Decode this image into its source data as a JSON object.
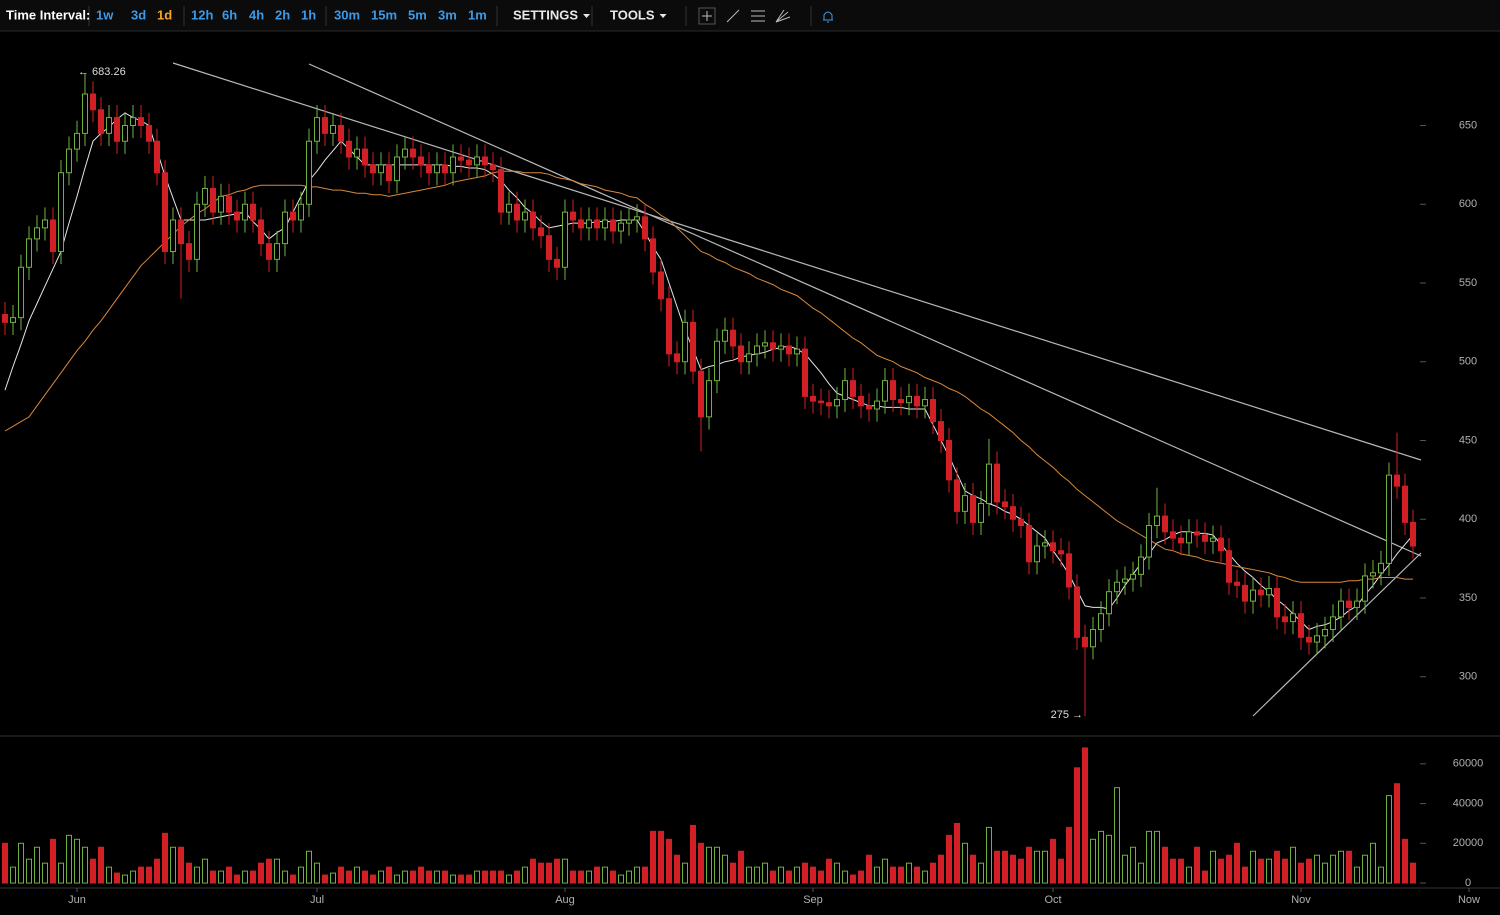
{
  "toolbar": {
    "label": "Time Interval:",
    "intervals": [
      "1w",
      "3d",
      "1d",
      "12h",
      "6h",
      "4h",
      "2h",
      "1h",
      "30m",
      "15m",
      "5m",
      "3m",
      "1m"
    ],
    "active_interval_index": 2,
    "menus": [
      "SETTINGS",
      "TOOLS"
    ]
  },
  "chart_data": [
    {
      "type": "candlestick",
      "up_color": "#6fb23e",
      "down_color": "#d21f26",
      "xlim": [
        -0.625,
        186.875
      ],
      "ylim": [
        263,
        710
      ],
      "yticks": [
        300,
        350,
        400,
        450,
        500,
        550,
        600,
        650
      ],
      "open": [
        530,
        525,
        528,
        560,
        578,
        585,
        590,
        570,
        620,
        635,
        645,
        670,
        660,
        645,
        655,
        640,
        650,
        655,
        650,
        640,
        620,
        570,
        590,
        575,
        565,
        600,
        610,
        595,
        605,
        595,
        590,
        600,
        590,
        575,
        565,
        575,
        595,
        590,
        600,
        640,
        655,
        645,
        650,
        640,
        630,
        635,
        625,
        620,
        625,
        615,
        630,
        635,
        630,
        625,
        620,
        625,
        620,
        630,
        628,
        625,
        630,
        625,
        622,
        595,
        600,
        590,
        595,
        585,
        580,
        565,
        560,
        595,
        590,
        585,
        590,
        585,
        590,
        583,
        588,
        590,
        592,
        578,
        557,
        540,
        505,
        500,
        525,
        494,
        465,
        488,
        513,
        520,
        510,
        500,
        505,
        510,
        512,
        508,
        510,
        505,
        508,
        478,
        475,
        474,
        472,
        476,
        488,
        478,
        472,
        470,
        475,
        488,
        476,
        474,
        478,
        472,
        476,
        462,
        450,
        425,
        405,
        415,
        398,
        410,
        435,
        411,
        408,
        400,
        396,
        373,
        383,
        385,
        380,
        378,
        357,
        325,
        319,
        330,
        340,
        354,
        360,
        362,
        365,
        376,
        396,
        402,
        392,
        388,
        385,
        392,
        390,
        386,
        388,
        380,
        360,
        358,
        348,
        355,
        352,
        356,
        338,
        335,
        340,
        325,
        322,
        326,
        330,
        338,
        348,
        344,
        348,
        364,
        366,
        372,
        428,
        421,
        398
      ],
      "high": [
        538,
        536,
        568,
        586,
        593,
        598,
        598,
        628,
        643,
        653,
        683.26,
        678,
        668,
        663,
        663,
        658,
        663,
        663,
        658,
        648,
        628,
        598,
        598,
        583,
        608,
        618,
        618,
        613,
        613,
        603,
        608,
        608,
        598,
        583,
        583,
        603,
        603,
        608,
        648,
        663,
        663,
        658,
        658,
        648,
        643,
        643,
        633,
        633,
        633,
        638,
        643,
        643,
        638,
        633,
        633,
        633,
        638,
        638,
        636,
        638,
        638,
        633,
        630,
        608,
        608,
        603,
        603,
        593,
        588,
        573,
        603,
        603,
        598,
        598,
        598,
        598,
        598,
        596,
        598,
        600,
        600,
        586,
        565,
        548,
        513,
        533,
        533,
        502,
        496,
        521,
        528,
        528,
        518,
        513,
        518,
        520,
        520,
        518,
        518,
        516,
        516,
        486,
        483,
        482,
        484,
        496,
        496,
        486,
        480,
        483,
        496,
        496,
        484,
        486,
        486,
        484,
        484,
        470,
        458,
        433,
        423,
        423,
        418,
        451,
        443,
        419,
        416,
        408,
        404,
        391,
        393,
        393,
        388,
        386,
        365,
        333,
        338,
        348,
        362,
        368,
        370,
        373,
        384,
        404,
        420,
        410,
        400,
        396,
        400,
        400,
        398,
        396,
        396,
        388,
        368,
        366,
        363,
        363,
        364,
        364,
        346,
        348,
        348,
        333,
        334,
        338,
        346,
        356,
        356,
        356,
        372,
        374,
        380,
        436,
        455,
        429,
        406
      ],
      "low": [
        517,
        517,
        520,
        552,
        570,
        577,
        562,
        562,
        612,
        627,
        637,
        652,
        637,
        637,
        632,
        632,
        642,
        642,
        632,
        612,
        562,
        562,
        540,
        557,
        557,
        592,
        587,
        587,
        587,
        582,
        582,
        582,
        567,
        557,
        557,
        567,
        582,
        582,
        592,
        632,
        637,
        637,
        632,
        622,
        622,
        617,
        612,
        612,
        607,
        607,
        622,
        622,
        617,
        612,
        612,
        612,
        612,
        620,
        617,
        617,
        617,
        614,
        587,
        587,
        582,
        582,
        577,
        572,
        557,
        552,
        552,
        582,
        577,
        577,
        577,
        577,
        575,
        575,
        580,
        582,
        570,
        549,
        532,
        497,
        492,
        492,
        486,
        443,
        457,
        480,
        505,
        502,
        492,
        492,
        497,
        502,
        500,
        500,
        497,
        497,
        470,
        467,
        466,
        464,
        464,
        468,
        470,
        464,
        462,
        462,
        467,
        468,
        466,
        466,
        464,
        464,
        454,
        442,
        417,
        397,
        397,
        390,
        390,
        402,
        403,
        400,
        392,
        388,
        365,
        365,
        375,
        372,
        370,
        349,
        317,
        275,
        311,
        322,
        332,
        346,
        352,
        354,
        357,
        368,
        388,
        384,
        380,
        377,
        377,
        382,
        378,
        378,
        372,
        352,
        350,
        340,
        340,
        344,
        344,
        330,
        327,
        327,
        317,
        314,
        314,
        318,
        322,
        330,
        336,
        336,
        340,
        356,
        358,
        364,
        413,
        390,
        375
      ],
      "close": [
        525,
        528,
        560,
        578,
        585,
        590,
        570,
        620,
        635,
        645,
        670,
        660,
        645,
        655,
        640,
        650,
        655,
        650,
        640,
        620,
        570,
        590,
        575,
        565,
        600,
        610,
        595,
        605,
        595,
        590,
        600,
        590,
        575,
        565,
        575,
        595,
        590,
        600,
        640,
        655,
        645,
        650,
        640,
        630,
        635,
        625,
        620,
        625,
        615,
        630,
        635,
        630,
        625,
        620,
        625,
        620,
        630,
        628,
        625,
        630,
        625,
        622,
        595,
        600,
        590,
        595,
        585,
        580,
        565,
        560,
        595,
        590,
        585,
        590,
        585,
        590,
        583,
        588,
        590,
        592,
        578,
        557,
        540,
        505,
        500,
        525,
        494,
        465,
        488,
        513,
        520,
        510,
        500,
        505,
        510,
        512,
        508,
        510,
        505,
        508,
        478,
        475,
        474,
        472,
        476,
        488,
        478,
        472,
        470,
        475,
        488,
        476,
        474,
        478,
        472,
        476,
        462,
        450,
        425,
        405,
        415,
        398,
        410,
        435,
        411,
        408,
        400,
        396,
        373,
        383,
        385,
        380,
        378,
        357,
        325,
        319,
        330,
        340,
        354,
        360,
        362,
        365,
        376,
        396,
        402,
        392,
        388,
        385,
        392,
        390,
        386,
        388,
        380,
        360,
        358,
        348,
        355,
        352,
        356,
        338,
        335,
        340,
        325,
        322,
        326,
        330,
        338,
        348,
        344,
        348,
        364,
        366,
        372,
        428,
        421,
        398,
        383
      ],
      "lines": [
        {
          "color": "#e6e6e6",
          "values": [
            482,
            497,
            511,
            526,
            537,
            548,
            559,
            570,
            588,
            605,
            623,
            640,
            645,
            649,
            654,
            658,
            655,
            653,
            650,
            634,
            618,
            604,
            590,
            590,
            590,
            590,
            591,
            592,
            593,
            594,
            595,
            589,
            584,
            578,
            582,
            585,
            595,
            605,
            615,
            621,
            628,
            634,
            640,
            635,
            630,
            625,
            625,
            625,
            625,
            625,
            625,
            625,
            625,
            625,
            625,
            625,
            624,
            624,
            623,
            623,
            622,
            619,
            615,
            609,
            604,
            598,
            594,
            589,
            585,
            586,
            587,
            588,
            588,
            588,
            589,
            589,
            589,
            590,
            590,
            590,
            582,
            573,
            565,
            550,
            535,
            520,
            508,
            495,
            497,
            498,
            500,
            501,
            503,
            504,
            505,
            506,
            508,
            509,
            510,
            508,
            505,
            499,
            493,
            486,
            480,
            478,
            476,
            474,
            472,
            472,
            471,
            471,
            471,
            470,
            470,
            470,
            460,
            450,
            440,
            429,
            418,
            415,
            413,
            410,
            408,
            405,
            403,
            400,
            396,
            392,
            388,
            380,
            373,
            365,
            355,
            345,
            344,
            344,
            343,
            350,
            358,
            365,
            372,
            378,
            385,
            387,
            390,
            392,
            392,
            391,
            391,
            390,
            384,
            378,
            372,
            367,
            363,
            358,
            354,
            349,
            345,
            340,
            335,
            330,
            332,
            333,
            335,
            338,
            342,
            345,
            352,
            358,
            365,
            371,
            378,
            384,
            390
          ]
        },
        {
          "color": "#d9883a",
          "values": [
            456,
            459,
            462,
            465,
            472,
            479,
            486,
            493,
            500,
            507,
            513,
            520,
            526,
            533,
            540,
            547,
            554,
            561,
            566,
            571,
            576,
            581,
            586,
            590,
            594,
            597,
            601,
            605,
            606,
            608,
            609,
            611,
            612,
            612,
            612,
            612,
            612,
            612,
            611,
            611,
            610,
            609,
            609,
            608,
            607,
            607,
            606,
            606,
            605,
            606,
            607,
            608,
            609,
            610,
            611,
            612,
            614,
            615,
            616,
            617,
            618,
            620,
            621,
            621,
            621,
            620,
            620,
            620,
            619,
            617,
            616,
            615,
            613,
            612,
            611,
            609,
            608,
            607,
            605,
            604,
            600,
            597,
            593,
            590,
            585,
            580,
            575,
            570,
            568,
            565,
            563,
            560,
            558,
            556,
            553,
            551,
            549,
            546,
            544,
            542,
            538,
            534,
            531,
            527,
            523,
            519,
            515,
            512,
            508,
            504,
            502,
            500,
            497,
            495,
            493,
            490,
            488,
            486,
            483,
            481,
            478,
            474,
            470,
            467,
            463,
            459,
            455,
            450,
            446,
            441,
            437,
            433,
            428,
            424,
            419,
            415,
            411,
            407,
            403,
            399,
            396,
            393,
            390,
            387,
            384,
            381,
            380,
            378,
            377,
            376,
            374,
            373,
            372,
            371,
            370,
            369,
            368,
            367,
            366,
            364,
            363,
            361,
            360,
            360,
            360,
            360,
            360,
            360,
            361,
            361,
            362,
            362,
            363,
            363,
            363,
            362,
            362
          ]
        }
      ],
      "annotations": [
        {
          "label": "← 683.26",
          "value": 683.26
        },
        {
          "label": "275 →",
          "value": 275
        }
      ]
    },
    {
      "type": "bar",
      "up_color": "#6fb23e",
      "down_color": "#d21f26",
      "xlim": [
        -0.625,
        186.875
      ],
      "ylim": [
        -2000,
        73000
      ],
      "yticks": [
        0,
        20000,
        40000,
        60000
      ],
      "xticks": [
        {
          "value": 9,
          "label": "Jun"
        },
        {
          "value": 39,
          "label": "Jul"
        },
        {
          "value": 70,
          "label": "Aug"
        },
        {
          "value": 101,
          "label": "Sep"
        },
        {
          "value": 131,
          "label": "Oct"
        },
        {
          "value": 162,
          "label": "Nov"
        },
        {
          "value": 183,
          "label": "Now"
        }
      ],
      "values": [
        20000,
        8000,
        20000,
        12000,
        18000,
        10000,
        22000,
        10000,
        24000,
        22000,
        18000,
        12000,
        18000,
        8000,
        5000,
        4000,
        6000,
        8000,
        8000,
        12000,
        25000,
        18000,
        18000,
        10000,
        8000,
        12000,
        6000,
        6000,
        8000,
        4000,
        6000,
        6000,
        10000,
        12000,
        12000,
        6000,
        4000,
        8000,
        16000,
        10000,
        4000,
        5000,
        8000,
        6000,
        8000,
        6000,
        4000,
        6000,
        8000,
        4000,
        6000,
        6000,
        8000,
        6000,
        6000,
        6000,
        4000,
        4000,
        4000,
        6000,
        6000,
        6000,
        6000,
        4000,
        6000,
        8000,
        12000,
        10000,
        10000,
        12000,
        12000,
        6000,
        6000,
        6000,
        8000,
        8000,
        6000,
        4000,
        6000,
        8000,
        8000,
        26000,
        26000,
        22000,
        14000,
        10000,
        29000,
        20000,
        18000,
        18000,
        14000,
        10000,
        16000,
        8000,
        8000,
        10000,
        6000,
        8000,
        6000,
        8000,
        10000,
        8000,
        6000,
        12000,
        10000,
        6000,
        4000,
        6000,
        14000,
        8000,
        12000,
        8000,
        8000,
        10000,
        8000,
        6000,
        10000,
        14000,
        24000,
        30000,
        20000,
        14000,
        10000,
        28000,
        16000,
        16000,
        14000,
        12000,
        18000,
        16000,
        16000,
        22000,
        12000,
        28000,
        58000,
        68000,
        22000,
        26000,
        24000,
        48000,
        14000,
        18000,
        10000,
        26000,
        26000,
        18000,
        12000,
        12000,
        8000,
        18000,
        6000,
        16000,
        12000,
        14000,
        20000,
        8000,
        16000,
        12000,
        12000,
        16000,
        12000,
        18000,
        10000,
        12000,
        14000,
        10000,
        14000,
        16000,
        16000,
        8000,
        14000,
        20000,
        8000,
        44000,
        50000,
        22000,
        10000
      ]
    }
  ]
}
